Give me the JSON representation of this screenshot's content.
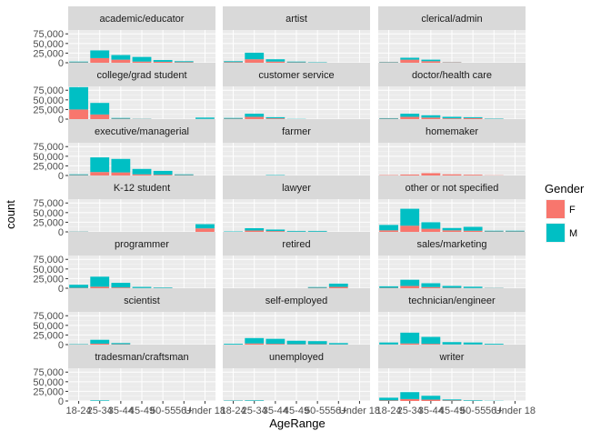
{
  "chart_data": {
    "type": "bar",
    "faceted": true,
    "stacked": true,
    "xlabel": "AgeRange",
    "ylabel": "count",
    "categories": [
      "18-24",
      "25-34",
      "35-44",
      "45-49",
      "50-55",
      "56+",
      "Under 18"
    ],
    "y_ticks": [
      25000,
      50000,
      75000
    ],
    "y_tick_labels": [
      "25,000",
      "50,000",
      "75,000"
    ],
    "ylim": [
      0,
      85000
    ],
    "grid": true,
    "legend": {
      "title": "Gender",
      "position": "right",
      "entries": [
        {
          "key": "F",
          "label": "F",
          "color": "#F8766D"
        },
        {
          "key": "M",
          "label": "M",
          "color": "#00BFC4"
        }
      ]
    },
    "facets": [
      {
        "title": "academic/educator",
        "F": [
          1000,
          12000,
          8000,
          3000,
          2500,
          1500,
          0
        ],
        "M": [
          2000,
          20000,
          12000,
          12000,
          4500,
          2500,
          0
        ]
      },
      {
        "title": "artist",
        "F": [
          1500,
          9000,
          3000,
          1000,
          500,
          0,
          0
        ],
        "M": [
          2500,
          17000,
          6000,
          2000,
          1000,
          0,
          0
        ]
      },
      {
        "title": "clerical/admin",
        "F": [
          1000,
          8000,
          4000,
          1000,
          0,
          0,
          0
        ],
        "M": [
          1000,
          5000,
          4000,
          500,
          0,
          0,
          0
        ]
      },
      {
        "title": "college/grad student",
        "F": [
          25000,
          12000,
          1000,
          500,
          0,
          0,
          500
        ],
        "M": [
          58000,
          30000,
          2000,
          500,
          0,
          0,
          3500
        ]
      },
      {
        "title": "customer service",
        "F": [
          1000,
          6000,
          2000,
          0,
          0,
          0,
          0
        ],
        "M": [
          2000,
          8000,
          3000,
          500,
          0,
          0,
          0
        ]
      },
      {
        "title": "doctor/health care",
        "F": [
          1000,
          6000,
          4000,
          2000,
          2500,
          500,
          0
        ],
        "M": [
          1500,
          8000,
          6000,
          4000,
          2500,
          1000,
          0
        ]
      },
      {
        "title": "executive/managerial",
        "F": [
          1000,
          9000,
          8000,
          3000,
          2000,
          1000,
          0
        ],
        "M": [
          2000,
          38000,
          35000,
          14000,
          10000,
          2000,
          0
        ]
      },
      {
        "title": "farmer",
        "F": [
          0,
          0,
          0,
          0,
          0,
          0,
          0
        ],
        "M": [
          0,
          0,
          1000,
          0,
          0,
          0,
          0
        ]
      },
      {
        "title": "homemaker",
        "F": [
          1000,
          2500,
          6000,
          3000,
          2000,
          500,
          0
        ],
        "M": [
          0,
          0,
          0,
          0,
          0,
          0,
          0
        ]
      },
      {
        "title": "K-12 student",
        "F": [
          500,
          0,
          0,
          0,
          0,
          0,
          9000
        ],
        "M": [
          500,
          0,
          0,
          0,
          0,
          0,
          11000
        ]
      },
      {
        "title": "lawyer",
        "F": [
          0,
          3500,
          2000,
          500,
          500,
          0,
          0
        ],
        "M": [
          1000,
          6000,
          4000,
          2000,
          2000,
          0,
          0
        ]
      },
      {
        "title": "other or not specified",
        "F": [
          4000,
          16000,
          8000,
          4000,
          3000,
          1000,
          1000
        ],
        "M": [
          14000,
          44000,
          17000,
          6000,
          10000,
          2000,
          2000
        ]
      },
      {
        "title": "programmer",
        "F": [
          1000,
          4000,
          2000,
          500,
          500,
          0,
          0
        ],
        "M": [
          8000,
          26000,
          12000,
          3000,
          1500,
          0,
          0
        ]
      },
      {
        "title": "retired",
        "F": [
          0,
          0,
          0,
          0,
          1000,
          3500,
          0
        ],
        "M": [
          0,
          0,
          0,
          0,
          2000,
          8500,
          0
        ]
      },
      {
        "title": "sales/marketing",
        "F": [
          1000,
          6000,
          3000,
          1000,
          500,
          500,
          0
        ],
        "M": [
          4000,
          16000,
          10000,
          5000,
          3500,
          500,
          0
        ]
      },
      {
        "title": "scientist",
        "F": [
          500,
          2500,
          1000,
          0,
          0,
          0,
          0
        ],
        "M": [
          1000,
          10000,
          3000,
          0,
          0,
          0,
          0
        ]
      },
      {
        "title": "self-employed",
        "F": [
          0,
          3000,
          2000,
          1000,
          1000,
          500,
          0
        ],
        "M": [
          2000,
          14000,
          13000,
          9000,
          8000,
          3500,
          0
        ]
      },
      {
        "title": "technician/engineer",
        "F": [
          500,
          3000,
          2000,
          500,
          500,
          0,
          0
        ],
        "M": [
          5000,
          28000,
          18000,
          6000,
          5000,
          2000,
          0
        ]
      },
      {
        "title": "tradesman/craftsman",
        "F": [
          0,
          0,
          0,
          0,
          0,
          0,
          0
        ],
        "M": [
          0,
          1500,
          0,
          0,
          0,
          0,
          0
        ]
      },
      {
        "title": "unemployed",
        "F": [
          500,
          500,
          0,
          0,
          0,
          0,
          0
        ],
        "M": [
          1000,
          1500,
          0,
          0,
          0,
          0,
          0
        ]
      },
      {
        "title": "writer",
        "F": [
          1500,
          5000,
          3500,
          1500,
          500,
          0,
          0
        ],
        "M": [
          7000,
          18000,
          10000,
          2500,
          1500,
          500,
          0
        ]
      }
    ]
  }
}
